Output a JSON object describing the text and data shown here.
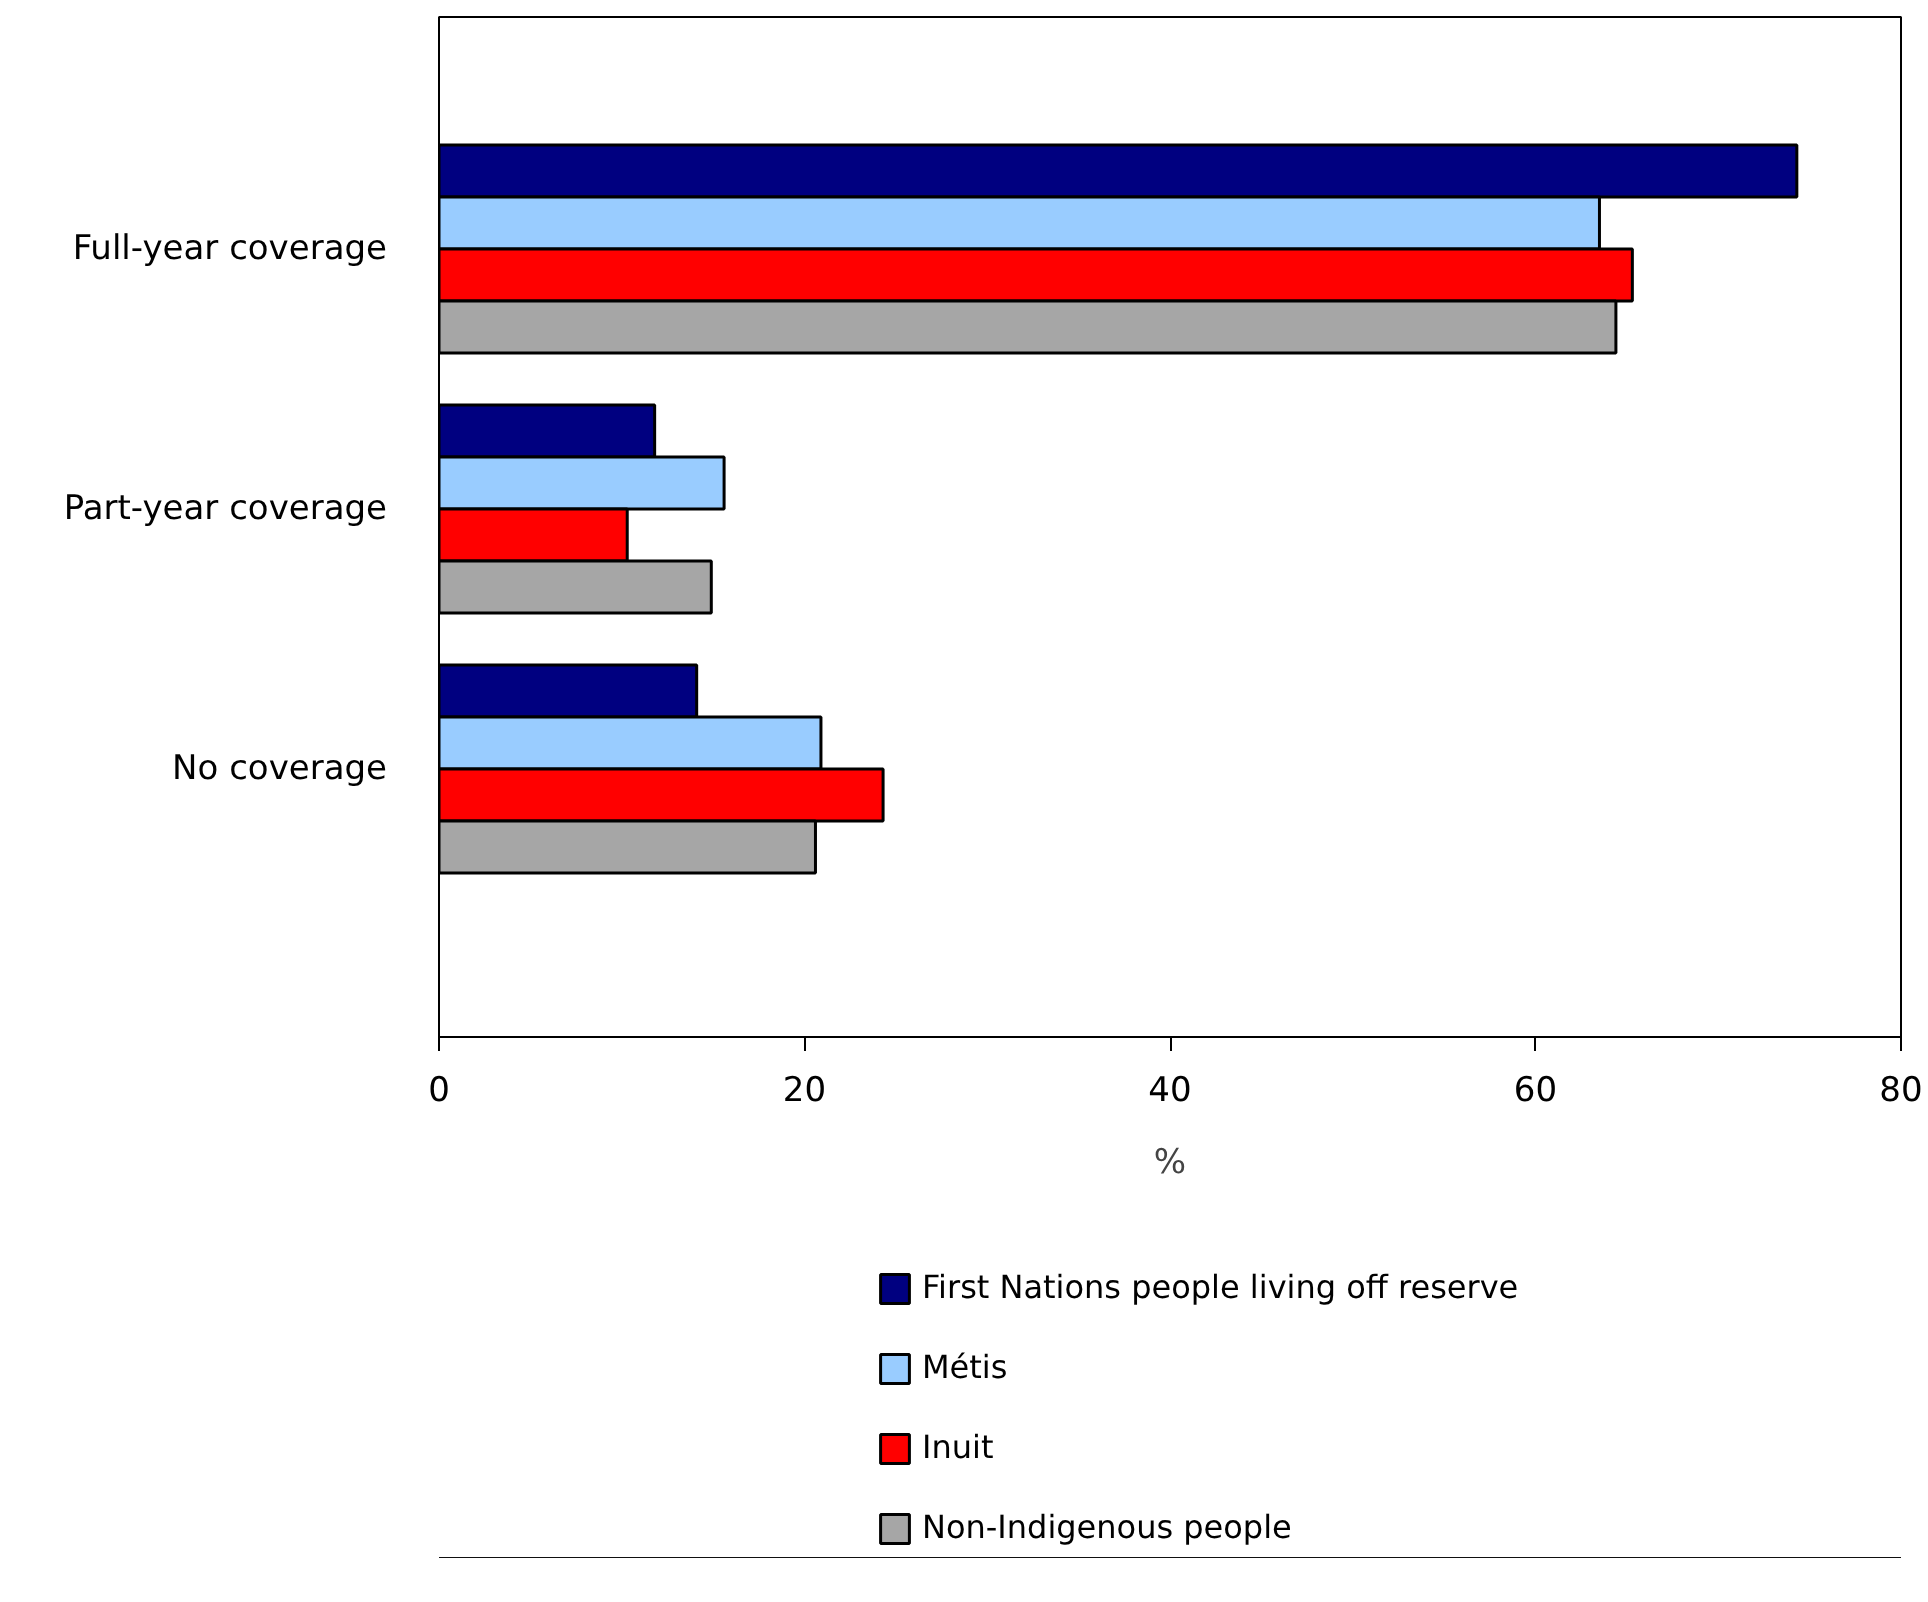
{
  "chart_data": {
    "type": "bar",
    "orientation": "horizontal",
    "categories": [
      "Full-year coverage",
      "Part-year coverage",
      "No coverage"
    ],
    "series": [
      {
        "name": "First Nations people living off reserve",
        "color": "#000080",
        "values": [
          74.3,
          11.8,
          14.1
        ]
      },
      {
        "name": "Métis",
        "color": "#99ccff",
        "values": [
          63.5,
          15.6,
          20.9
        ]
      },
      {
        "name": "Inuit",
        "color": "#ff0000",
        "values": [
          65.3,
          10.3,
          24.3
        ]
      },
      {
        "name": "Non-Indigenous people",
        "color": "#a6a6a6",
        "values": [
          64.4,
          14.9,
          20.6
        ]
      }
    ],
    "xlabel": "%",
    "xlim": [
      0,
      80
    ],
    "xticks": [
      0,
      20,
      40,
      60,
      80
    ],
    "grid": false,
    "legend": "bottom"
  }
}
